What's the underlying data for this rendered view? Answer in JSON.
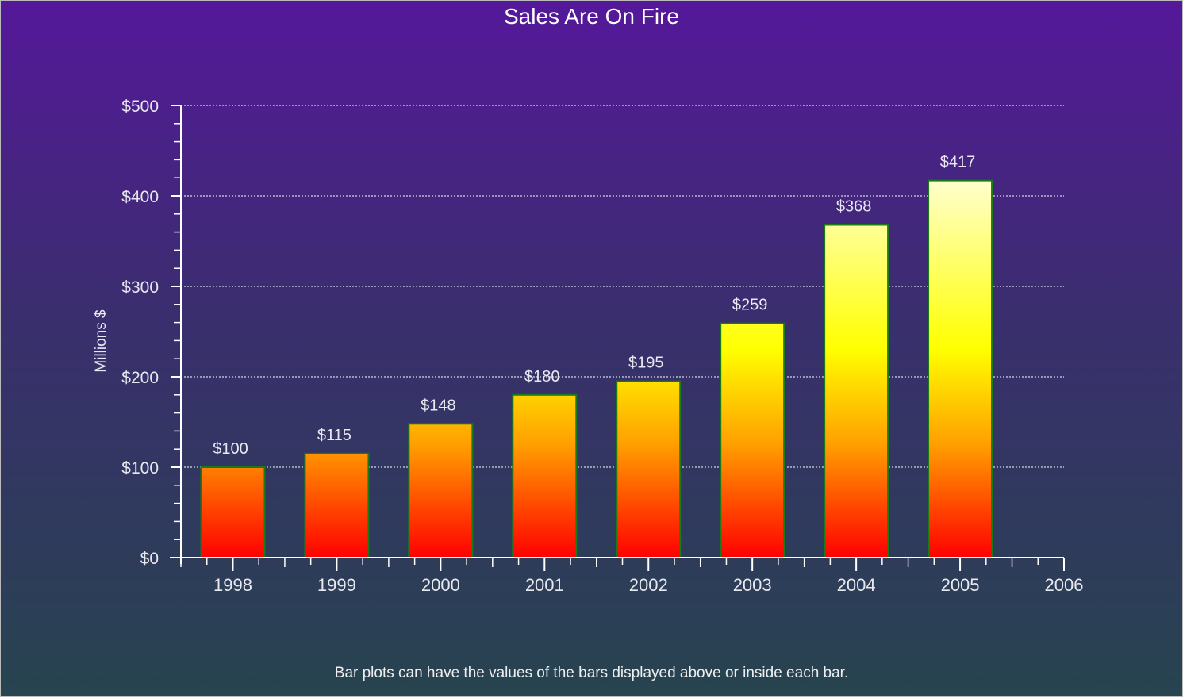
{
  "chart_data": {
    "type": "bar",
    "title": "Sales Are On Fire",
    "subtitle": "Bar plots can have the values of the bars displayed above or inside each bar.",
    "xlabel": "",
    "ylabel": "Millions $",
    "categories": [
      "1998",
      "1999",
      "2000",
      "2001",
      "2002",
      "2003",
      "2004",
      "2005"
    ],
    "x_ticks": [
      "1998",
      "1999",
      "2000",
      "2001",
      "2002",
      "2003",
      "2004",
      "2005",
      "2006"
    ],
    "values": [
      100,
      115,
      148,
      180,
      195,
      259,
      368,
      417
    ],
    "data_labels": [
      "$100",
      "$115",
      "$148",
      "$180",
      "$195",
      "$259",
      "$368",
      "$417"
    ],
    "y_ticks": [
      "$0",
      "$100",
      "$200",
      "$300",
      "$400",
      "$500"
    ],
    "ylim": [
      0,
      500
    ],
    "grid": true,
    "colors": {
      "bar_bottom": "#ff0000",
      "bar_mid": "#ffff00",
      "bar_top": "#ffffd0",
      "bar_border": "#1a7a1a"
    }
  }
}
